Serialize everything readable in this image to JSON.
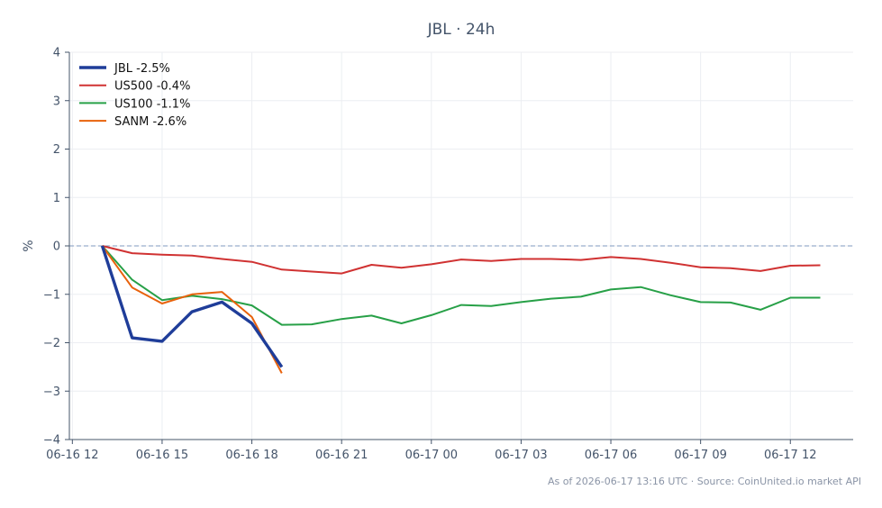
{
  "chart_data": {
    "type": "line",
    "title": "JBL · 24h",
    "ylabel": "%",
    "xlabel": "",
    "ylim": [
      -4,
      4
    ],
    "yticks": [
      4,
      3,
      2,
      1,
      0,
      -1,
      -2,
      -3,
      -4
    ],
    "ytick_labels": [
      "4",
      "3",
      "2",
      "1",
      "0",
      "−1",
      "−2",
      "−3",
      "−4"
    ],
    "xlim": [
      -0.1,
      26.1
    ],
    "xticks": [
      0,
      3,
      6,
      9,
      12,
      15,
      18,
      21,
      24
    ],
    "xtick_labels": [
      "06-16 12",
      "06-16 15",
      "06-16 18",
      "06-16 21",
      "06-17 00",
      "06-17 03",
      "06-17 06",
      "06-17 09",
      "06-17 12"
    ],
    "grid": true,
    "zero_line": true,
    "legend_position": "top-left",
    "series": [
      {
        "name": "JBL -2.5%",
        "color": "#1f3d99",
        "x": [
          1,
          2,
          3,
          4,
          5,
          6,
          7
        ],
        "y": [
          0,
          -1.9,
          -1.97,
          -1.36,
          -1.16,
          -1.6,
          -2.5
        ]
      },
      {
        "name": "US500 -0.4%",
        "color": "#d03232",
        "x": [
          1,
          2,
          3,
          4,
          5,
          6,
          7,
          8,
          9,
          10,
          11,
          12,
          13,
          14,
          15,
          16,
          17,
          18,
          19,
          20,
          21,
          22,
          23,
          24,
          25
        ],
        "y": [
          0,
          -0.15,
          -0.18,
          -0.2,
          -0.27,
          -0.33,
          -0.49,
          -0.53,
          -0.57,
          -0.39,
          -0.45,
          -0.38,
          -0.28,
          -0.31,
          -0.27,
          -0.27,
          -0.29,
          -0.23,
          -0.27,
          -0.35,
          -0.44,
          -0.46,
          -0.52,
          -0.41,
          -0.4
        ]
      },
      {
        "name": "US100 -1.1%",
        "color": "#27a047",
        "x": [
          1,
          2,
          3,
          4,
          5,
          6,
          7,
          8,
          9,
          10,
          11,
          12,
          13,
          14,
          15,
          16,
          17,
          18,
          19,
          20,
          21,
          22,
          23,
          24,
          25
        ],
        "y": [
          0,
          -0.7,
          -1.12,
          -1.03,
          -1.1,
          -1.23,
          -1.63,
          -1.62,
          -1.51,
          -1.44,
          -1.6,
          -1.43,
          -1.22,
          -1.24,
          -1.16,
          -1.09,
          -1.05,
          -0.9,
          -0.85,
          -1.02,
          -1.16,
          -1.17,
          -1.32,
          -1.07,
          -1.07
        ]
      },
      {
        "name": "SANM -2.6%",
        "color": "#e8620c",
        "x": [
          1,
          2,
          3,
          4,
          5,
          6,
          7
        ],
        "y": [
          0,
          -0.86,
          -1.19,
          -1.0,
          -0.95,
          -1.47,
          -2.63
        ]
      }
    ]
  },
  "footer": "As of 2026-06-17 13:16 UTC · Source: CoinUnited.io market API"
}
